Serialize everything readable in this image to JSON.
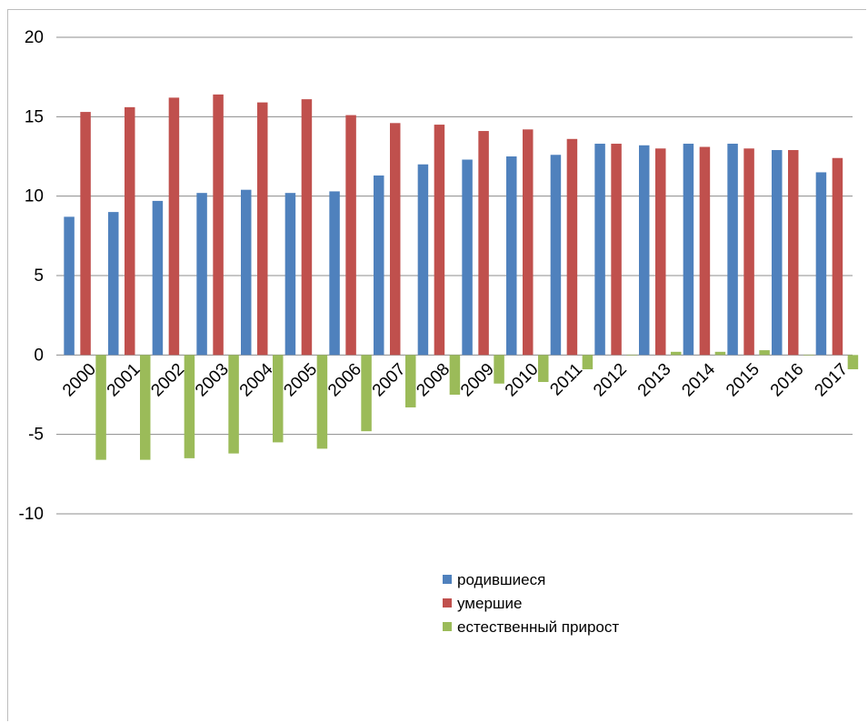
{
  "chart_data": {
    "type": "bar",
    "categories": [
      "2000",
      "2001",
      "2002",
      "2003",
      "2004",
      "2005",
      "2006",
      "2007",
      "2008",
      "2009",
      "2010",
      "2011",
      "2012",
      "2013",
      "2014",
      "2015",
      "2016",
      "2017"
    ],
    "series": [
      {
        "name": "родившиеся",
        "color": "#4f81bd",
        "values": [
          8.7,
          9.0,
          9.7,
          10.2,
          10.4,
          10.2,
          10.3,
          11.3,
          12.0,
          12.3,
          12.5,
          12.6,
          13.3,
          13.2,
          13.3,
          13.3,
          12.9,
          11.5
        ]
      },
      {
        "name": "умершие",
        "color": "#c0504d",
        "values": [
          15.3,
          15.6,
          16.2,
          16.4,
          15.9,
          16.1,
          15.1,
          14.6,
          14.5,
          14.1,
          14.2,
          13.6,
          13.3,
          13.0,
          13.1,
          13.0,
          12.9,
          12.4
        ]
      },
      {
        "name": "естественный прирост",
        "color": "#9bbb59",
        "values": [
          -6.6,
          -6.6,
          -6.5,
          -6.2,
          -5.5,
          -5.9,
          -4.8,
          -3.3,
          -2.5,
          -1.8,
          -1.7,
          -0.9,
          0.0,
          0.2,
          0.2,
          0.3,
          0.0,
          -0.9
        ]
      }
    ],
    "yticks": [
      "20",
      "15",
      "10",
      "5",
      "0",
      "-5",
      "-10"
    ],
    "ylim": [
      -10,
      20
    ],
    "ytick_step": 5,
    "grid": true,
    "legend_position": "bottom-center",
    "xlabel": "",
    "ylabel": "",
    "title": ""
  }
}
